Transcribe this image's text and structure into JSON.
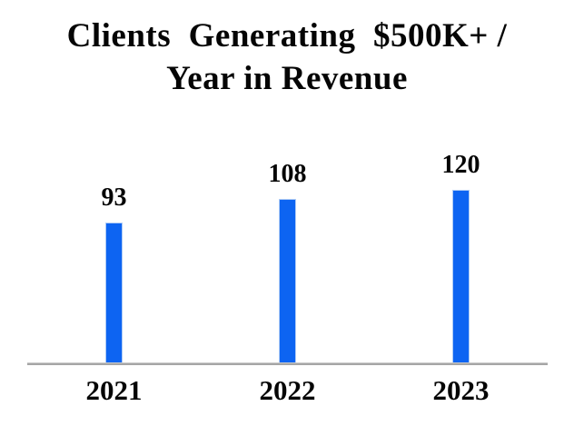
{
  "title": {
    "lines": [
      "Clients  Generating  $500K+ /",
      "Year in Revenue"
    ]
  },
  "chart_data": {
    "type": "bar",
    "title": "Clients Generating $500K+ / Year in Revenue",
    "categories": [
      "2021",
      "2022",
      "2023"
    ],
    "values": [
      93,
      108,
      120
    ],
    "data_labels": [
      "93",
      "108",
      "120"
    ],
    "xlabel": "",
    "ylabel": "",
    "ylim": [
      0,
      140
    ],
    "grid": false,
    "legend": false,
    "bar_color": "#0D64F2",
    "bar_border_color": "#AECBF5",
    "axis_line_color": "#A6A6A6",
    "text_color": "#050505"
  }
}
